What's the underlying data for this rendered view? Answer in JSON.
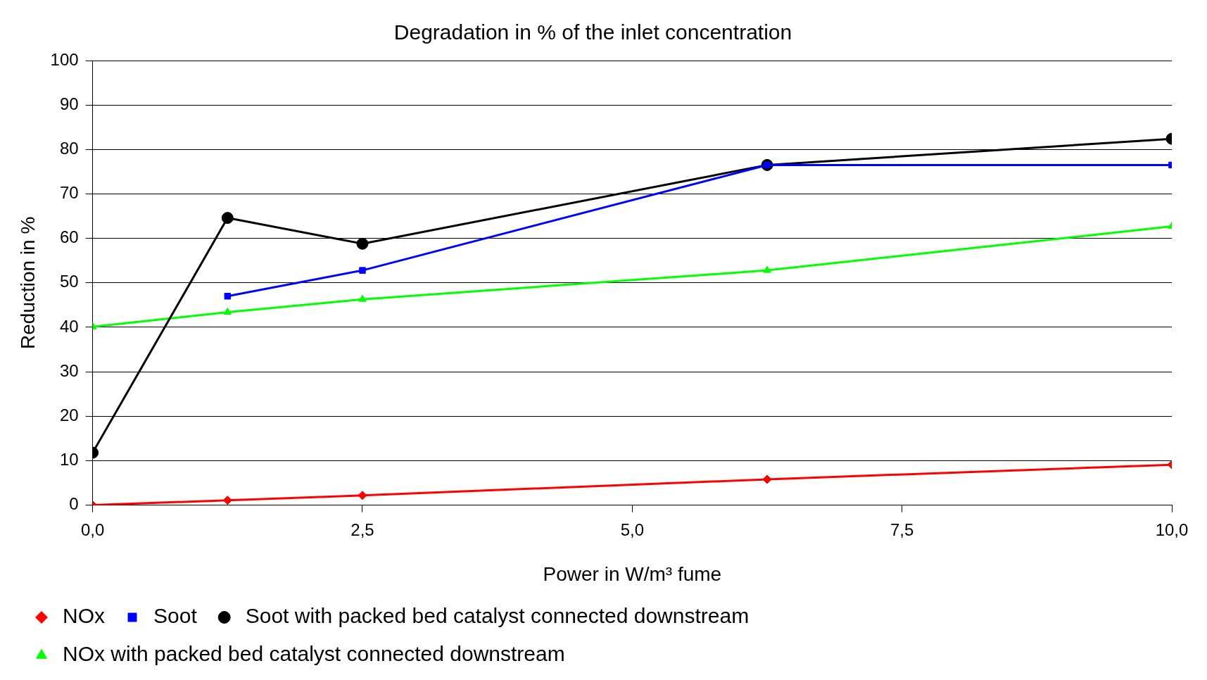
{
  "chart_data": {
    "type": "line",
    "title": "Degradation in % of the inlet concentration",
    "xlabel": "Power in W/m³ fume",
    "ylabel": "Reduction in %",
    "x": [
      0,
      1.25,
      2.5,
      6.25,
      10
    ],
    "series": [
      {
        "name": "NOx",
        "color": "#ff0000",
        "marker": "diamond",
        "values": [
          0,
          1.1,
          2.2,
          5.8,
          9.1
        ]
      },
      {
        "name": "Soot",
        "color": "#0000ff",
        "marker": "square",
        "values": [
          null,
          47,
          52.8,
          76.5,
          76.5
        ]
      },
      {
        "name": "Soot with packed bed catalyst connected downstream",
        "color": "#000000",
        "marker": "circle",
        "values": [
          11.8,
          64.6,
          58.8,
          76.5,
          82.4
        ]
      },
      {
        "name": "NOx with packed bed catalyst connected downstream",
        "color": "#00ff00",
        "marker": "triangle",
        "values": [
          40.1,
          43.4,
          46.3,
          52.8,
          62.7
        ]
      }
    ],
    "xlim": [
      0,
      10
    ],
    "xticks": [
      {
        "value": 0,
        "label": "0,0"
      },
      {
        "value": 2.5,
        "label": "2,5"
      },
      {
        "value": 5,
        "label": "5,0"
      },
      {
        "value": 7.5,
        "label": "7,5"
      },
      {
        "value": 10,
        "label": "10,0"
      }
    ],
    "ylim": [
      0,
      100
    ],
    "yticks": [
      0,
      10,
      20,
      30,
      40,
      50,
      60,
      70,
      80,
      90,
      100
    ],
    "grid": "y",
    "legend": "bottom",
    "line_style": "solid"
  }
}
